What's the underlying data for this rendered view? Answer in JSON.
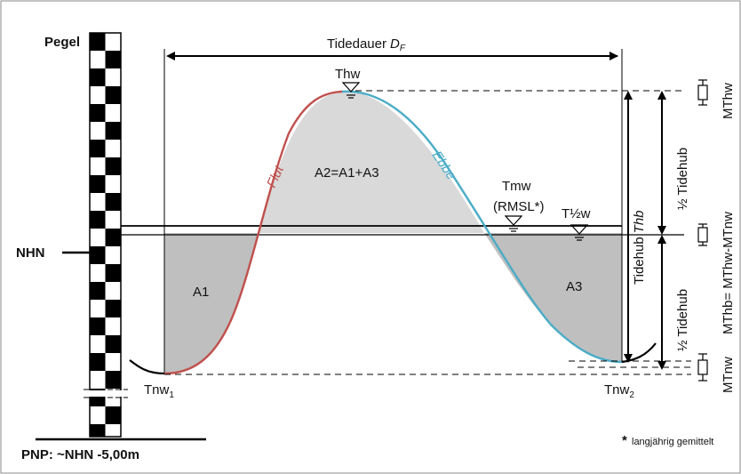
{
  "diagram": {
    "pegel": "Pegel",
    "nhn": "NHN",
    "pnp": "PNP: ~NHN -5,00m",
    "tidedauer": "Tidedauer",
    "tidedauer_sym": "D",
    "tidedauer_sub": "F",
    "thw": "Thw",
    "tnw": "Tnw",
    "tnw1_sub": "1",
    "tnw2_sub": "2",
    "tmw": "Tmw",
    "rmsl": "(RMSL*)",
    "t_half_w": "T½w",
    "flut": "Flut",
    "ebbe": "Ebbe",
    "a1": "A1",
    "a2": "A2=A1+A3",
    "a3": "A3",
    "tidehub": "Tidehub",
    "thb": "Thb",
    "half_tidehub": "½ Tidehub",
    "mthw": "MThw",
    "mthb": "MThb= MThw-MTnw",
    "mtnw": "MTnw",
    "footnote_star": "*",
    "footnote_text": "langjährig gemittelt",
    "colors": {
      "flut": "#c0504d",
      "ebbe": "#4bacc6",
      "fill": "#d9d9d9",
      "fill_dark": "#bfbfbf"
    }
  }
}
